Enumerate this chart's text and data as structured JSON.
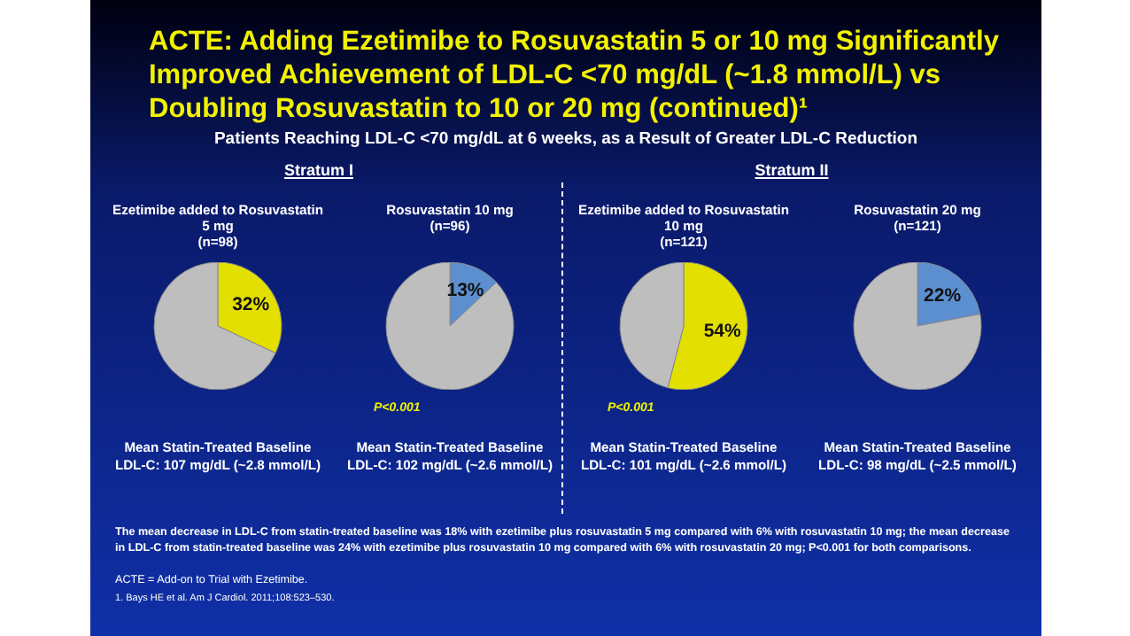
{
  "chart_data": [
    {
      "type": "other",
      "title": "ACTE: Adding Ezetimibe to Rosuvastatin 5 or 10 mg Significantly Improved Achievement of LDL-C <70 mg/dL (~1.8 mmol/L) vs Doubling Rosuvastatin to 10 or 20 mg (continued)¹",
      "subtitle": "Patients Reaching LDL-C <70 mg/dL at 6 weeks, as a Result of Greater LDL-C Reduction",
      "annotations": [
        "Stratum I",
        "Stratum II",
        "P<0.001",
        "P<0.001",
        "The mean decrease in LDL-C from statin-treated baseline was 18% with ezetimibe plus rosuvastatin 5 mg compared with 6% with rosuvastatin 10 mg; the mean decrease in LDL-C from statin-treated baseline was 24% with ezetimibe plus rosuvastatin 10 mg compared with 6% with rosuvastatin 20 mg; P<0.001 for both comparisons.",
        "ACTE = Add-on to Trial with Ezetimibe.",
        "1. Bays HE et al. Am J Cardiol. 2011;108:523–530."
      ]
    },
    {
      "type": "pie",
      "title": "Ezetimibe added to Rosuvastatin 5 mg",
      "subtitle": "(n=98)",
      "categories": [
        null,
        null
      ],
      "values": [
        32,
        68
      ],
      "colors": [
        "#e3df00",
        "#bebebe"
      ],
      "value_labels": [
        "32%",
        null
      ],
      "annotations": [
        "Mean Statin-Treated Baseline LDL-C: 107 mg/dL (~2.8 mmol/L)"
      ]
    },
    {
      "type": "pie",
      "title": "Rosuvastatin 10 mg",
      "subtitle": "(n=96)",
      "categories": [
        null,
        null
      ],
      "values": [
        13,
        87
      ],
      "colors": [
        "#5b8fd0",
        "#bebebe"
      ],
      "value_labels": [
        "13%",
        null
      ],
      "annotations": [
        "Mean Statin-Treated Baseline LDL-C: 102 mg/dL (~2.6 mmol/L)"
      ]
    },
    {
      "type": "pie",
      "title": "Ezetimibe added to Rosuvastatin 10 mg",
      "subtitle": "(n=121)",
      "categories": [
        null,
        null
      ],
      "values": [
        54,
        46
      ],
      "colors": [
        "#e3df00",
        "#bebebe"
      ],
      "value_labels": [
        "54%",
        null
      ],
      "annotations": [
        "Mean Statin-Treated Baseline LDL-C: 101 mg/dL (~2.6 mmol/L)"
      ]
    },
    {
      "type": "pie",
      "title": "Rosuvastatin 20 mg",
      "subtitle": "(n=121)",
      "categories": [
        null,
        null
      ],
      "values": [
        22,
        78
      ],
      "colors": [
        "#5b8fd0",
        "#bebebe"
      ],
      "value_labels": [
        "22%",
        null
      ],
      "annotations": [
        "Mean Statin-Treated Baseline LDL-C: 98 mg/dL (~2.5 mmol/L)"
      ]
    }
  ]
}
